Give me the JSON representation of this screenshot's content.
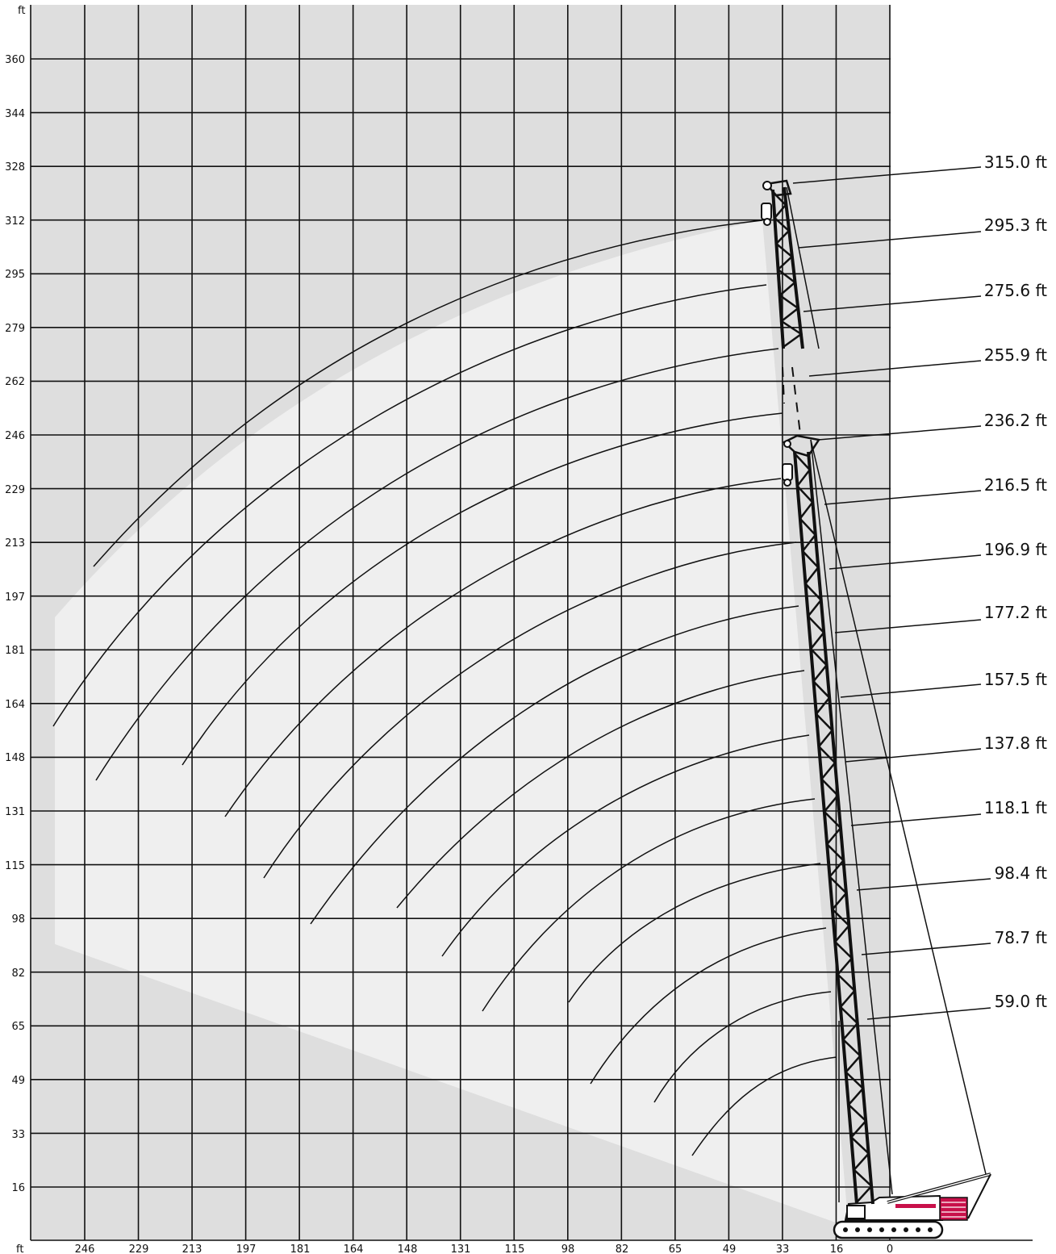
{
  "diagram": {
    "type": "crane-working-range",
    "unit_y": "ft",
    "unit_x": "ft",
    "y_ticks": [
      "360",
      "344",
      "328",
      "312",
      "295",
      "279",
      "262",
      "246",
      "229",
      "213",
      "197",
      "181",
      "164",
      "148",
      "131",
      "115",
      "98",
      "82",
      "65",
      "49",
      "33",
      "16"
    ],
    "x_ticks": [
      "246",
      "229",
      "213",
      "197",
      "181",
      "164",
      "148",
      "131",
      "115",
      "98",
      "82",
      "65",
      "49",
      "33",
      "16",
      "0"
    ],
    "boom_lengths": [
      "315.0 ft",
      "295.3 ft",
      "275.6 ft",
      "255.9 ft",
      "236.2 ft",
      "216.5 ft",
      "196.9 ft",
      "177.2 ft",
      "157.5 ft",
      "137.8 ft",
      "118.1 ft",
      "98.4 ft",
      "78.7 ft",
      "59.0 ft"
    ],
    "colors": {
      "outer_bg": "#dedede",
      "working_area": "#efefef",
      "grid": "#111111",
      "accent": "#c8104a"
    }
  }
}
